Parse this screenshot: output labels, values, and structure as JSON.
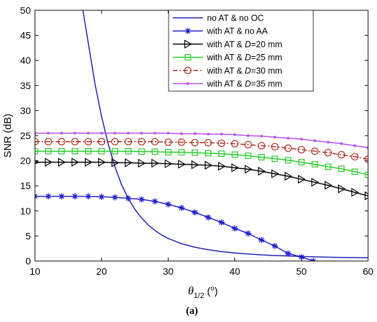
{
  "chart_data": {
    "type": "line",
    "xlabel_main": "θ",
    "xlabel_sub": "1/2",
    "xlabel_unit_open": " (",
    "xlabel_unit_sup": "o",
    "xlabel_unit_close": ")",
    "ylabel": "SNR (dB)",
    "caption": "(a)",
    "xlim": [
      10,
      60
    ],
    "ylim": [
      0,
      50
    ],
    "xticks": [
      10,
      20,
      30,
      40,
      50,
      60
    ],
    "yticks": [
      0,
      5,
      10,
      15,
      20,
      25,
      30,
      35,
      40,
      45,
      50
    ],
    "legend_position": "top-right",
    "series": [
      {
        "name": "no AT & no OC",
        "color": "#1f1fb4",
        "marker": "none",
        "dash": "solid",
        "x": [
          17.2,
          18,
          19,
          20,
          21,
          22,
          23,
          24,
          25,
          26,
          27,
          28,
          29,
          30,
          32,
          34,
          36,
          38,
          40,
          42,
          44,
          46,
          48,
          50,
          52,
          54,
          56,
          58,
          60
        ],
        "y": [
          50,
          43.5,
          35.4,
          28.8,
          23.3,
          18.8,
          15.2,
          12.5,
          10.3,
          8.6,
          7.2,
          6.1,
          5.2,
          4.5,
          3.45,
          2.75,
          2.25,
          1.88,
          1.6,
          1.4,
          1.23,
          1.1,
          1.0,
          0.9,
          0.83,
          0.77,
          0.72,
          0.68,
          0.65
        ]
      },
      {
        "name_pre": "with AT & no AA",
        "name_italic": "",
        "name_post": "",
        "color": "#1f1fd0",
        "marker": "asterisk",
        "dash": "solid",
        "x": [
          10,
          12,
          14,
          16,
          18,
          20,
          22,
          24,
          26,
          28,
          30,
          32,
          34,
          36,
          38,
          40,
          42,
          44,
          46,
          48,
          50,
          51.8
        ],
        "y": [
          12.9,
          12.9,
          12.9,
          12.9,
          12.9,
          12.8,
          12.7,
          12.5,
          12.3,
          11.9,
          11.3,
          10.6,
          9.7,
          8.7,
          7.7,
          6.5,
          5.5,
          4.2,
          3.0,
          1.5,
          0.8,
          0
        ]
      },
      {
        "name_pre": "with AT &  ",
        "name_italic": "D",
        "name_post": "=20 mm",
        "color": "#000000",
        "marker": "triangle-right",
        "dash": "solid",
        "x": [
          10,
          12,
          14,
          16,
          18,
          20,
          22,
          24,
          26,
          28,
          30,
          32,
          34,
          36,
          38,
          40,
          42,
          44,
          46,
          48,
          50,
          52,
          54,
          56,
          58,
          60
        ],
        "y": [
          19.7,
          19.7,
          19.7,
          19.7,
          19.7,
          19.7,
          19.6,
          19.6,
          19.5,
          19.5,
          19.4,
          19.3,
          19.2,
          19.1,
          18.9,
          18.6,
          18.3,
          17.9,
          17.4,
          16.9,
          16.3,
          15.7,
          15.1,
          14.4,
          13.7,
          13.0
        ]
      },
      {
        "name_pre": "with AT &  ",
        "name_italic": "D",
        "name_post": "=25 mm",
        "color": "#22cc22",
        "marker": "square",
        "dash": "solid",
        "x": [
          10,
          12,
          14,
          16,
          18,
          20,
          22,
          24,
          26,
          28,
          30,
          32,
          34,
          36,
          38,
          40,
          42,
          44,
          46,
          48,
          50,
          52,
          54,
          56,
          58,
          60
        ],
        "y": [
          21.9,
          21.9,
          21.9,
          21.9,
          21.9,
          21.9,
          21.9,
          21.9,
          21.8,
          21.8,
          21.7,
          21.7,
          21.6,
          21.5,
          21.4,
          21.2,
          21.0,
          20.7,
          20.4,
          20.1,
          19.7,
          19.3,
          18.8,
          18.4,
          17.8,
          17.2
        ]
      },
      {
        "name_pre": "with AT &  ",
        "name_italic": "D",
        "name_post": "=30 mm",
        "color": "#b02a1a",
        "marker": "circle",
        "dash": "dashdot",
        "x": [
          10,
          12,
          14,
          16,
          18,
          20,
          22,
          24,
          26,
          28,
          30,
          32,
          34,
          36,
          38,
          40,
          42,
          44,
          46,
          48,
          50,
          52,
          54,
          56,
          58,
          60
        ],
        "y": [
          23.8,
          23.8,
          23.8,
          23.8,
          23.8,
          23.8,
          23.8,
          23.8,
          23.8,
          23.8,
          23.7,
          23.7,
          23.6,
          23.6,
          23.5,
          23.4,
          23.2,
          23.0,
          22.8,
          22.5,
          22.2,
          21.9,
          21.6,
          21.2,
          20.8,
          20.3
        ]
      },
      {
        "name_pre": "with AT &  ",
        "name_italic": "D",
        "name_post": "=35 mm",
        "color": "#b24de6",
        "marker": "dot",
        "dash": "solid",
        "x": [
          10,
          12,
          14,
          16,
          18,
          20,
          22,
          24,
          26,
          28,
          30,
          32,
          34,
          36,
          38,
          40,
          42,
          44,
          46,
          48,
          50,
          52,
          54,
          56,
          58,
          60
        ],
        "y": [
          25.5,
          25.5,
          25.5,
          25.5,
          25.5,
          25.5,
          25.5,
          25.5,
          25.5,
          25.5,
          25.5,
          25.4,
          25.4,
          25.3,
          25.3,
          25.2,
          25.0,
          24.9,
          24.7,
          24.5,
          24.3,
          24.0,
          23.7,
          23.4,
          23.0,
          22.6
        ]
      }
    ]
  }
}
